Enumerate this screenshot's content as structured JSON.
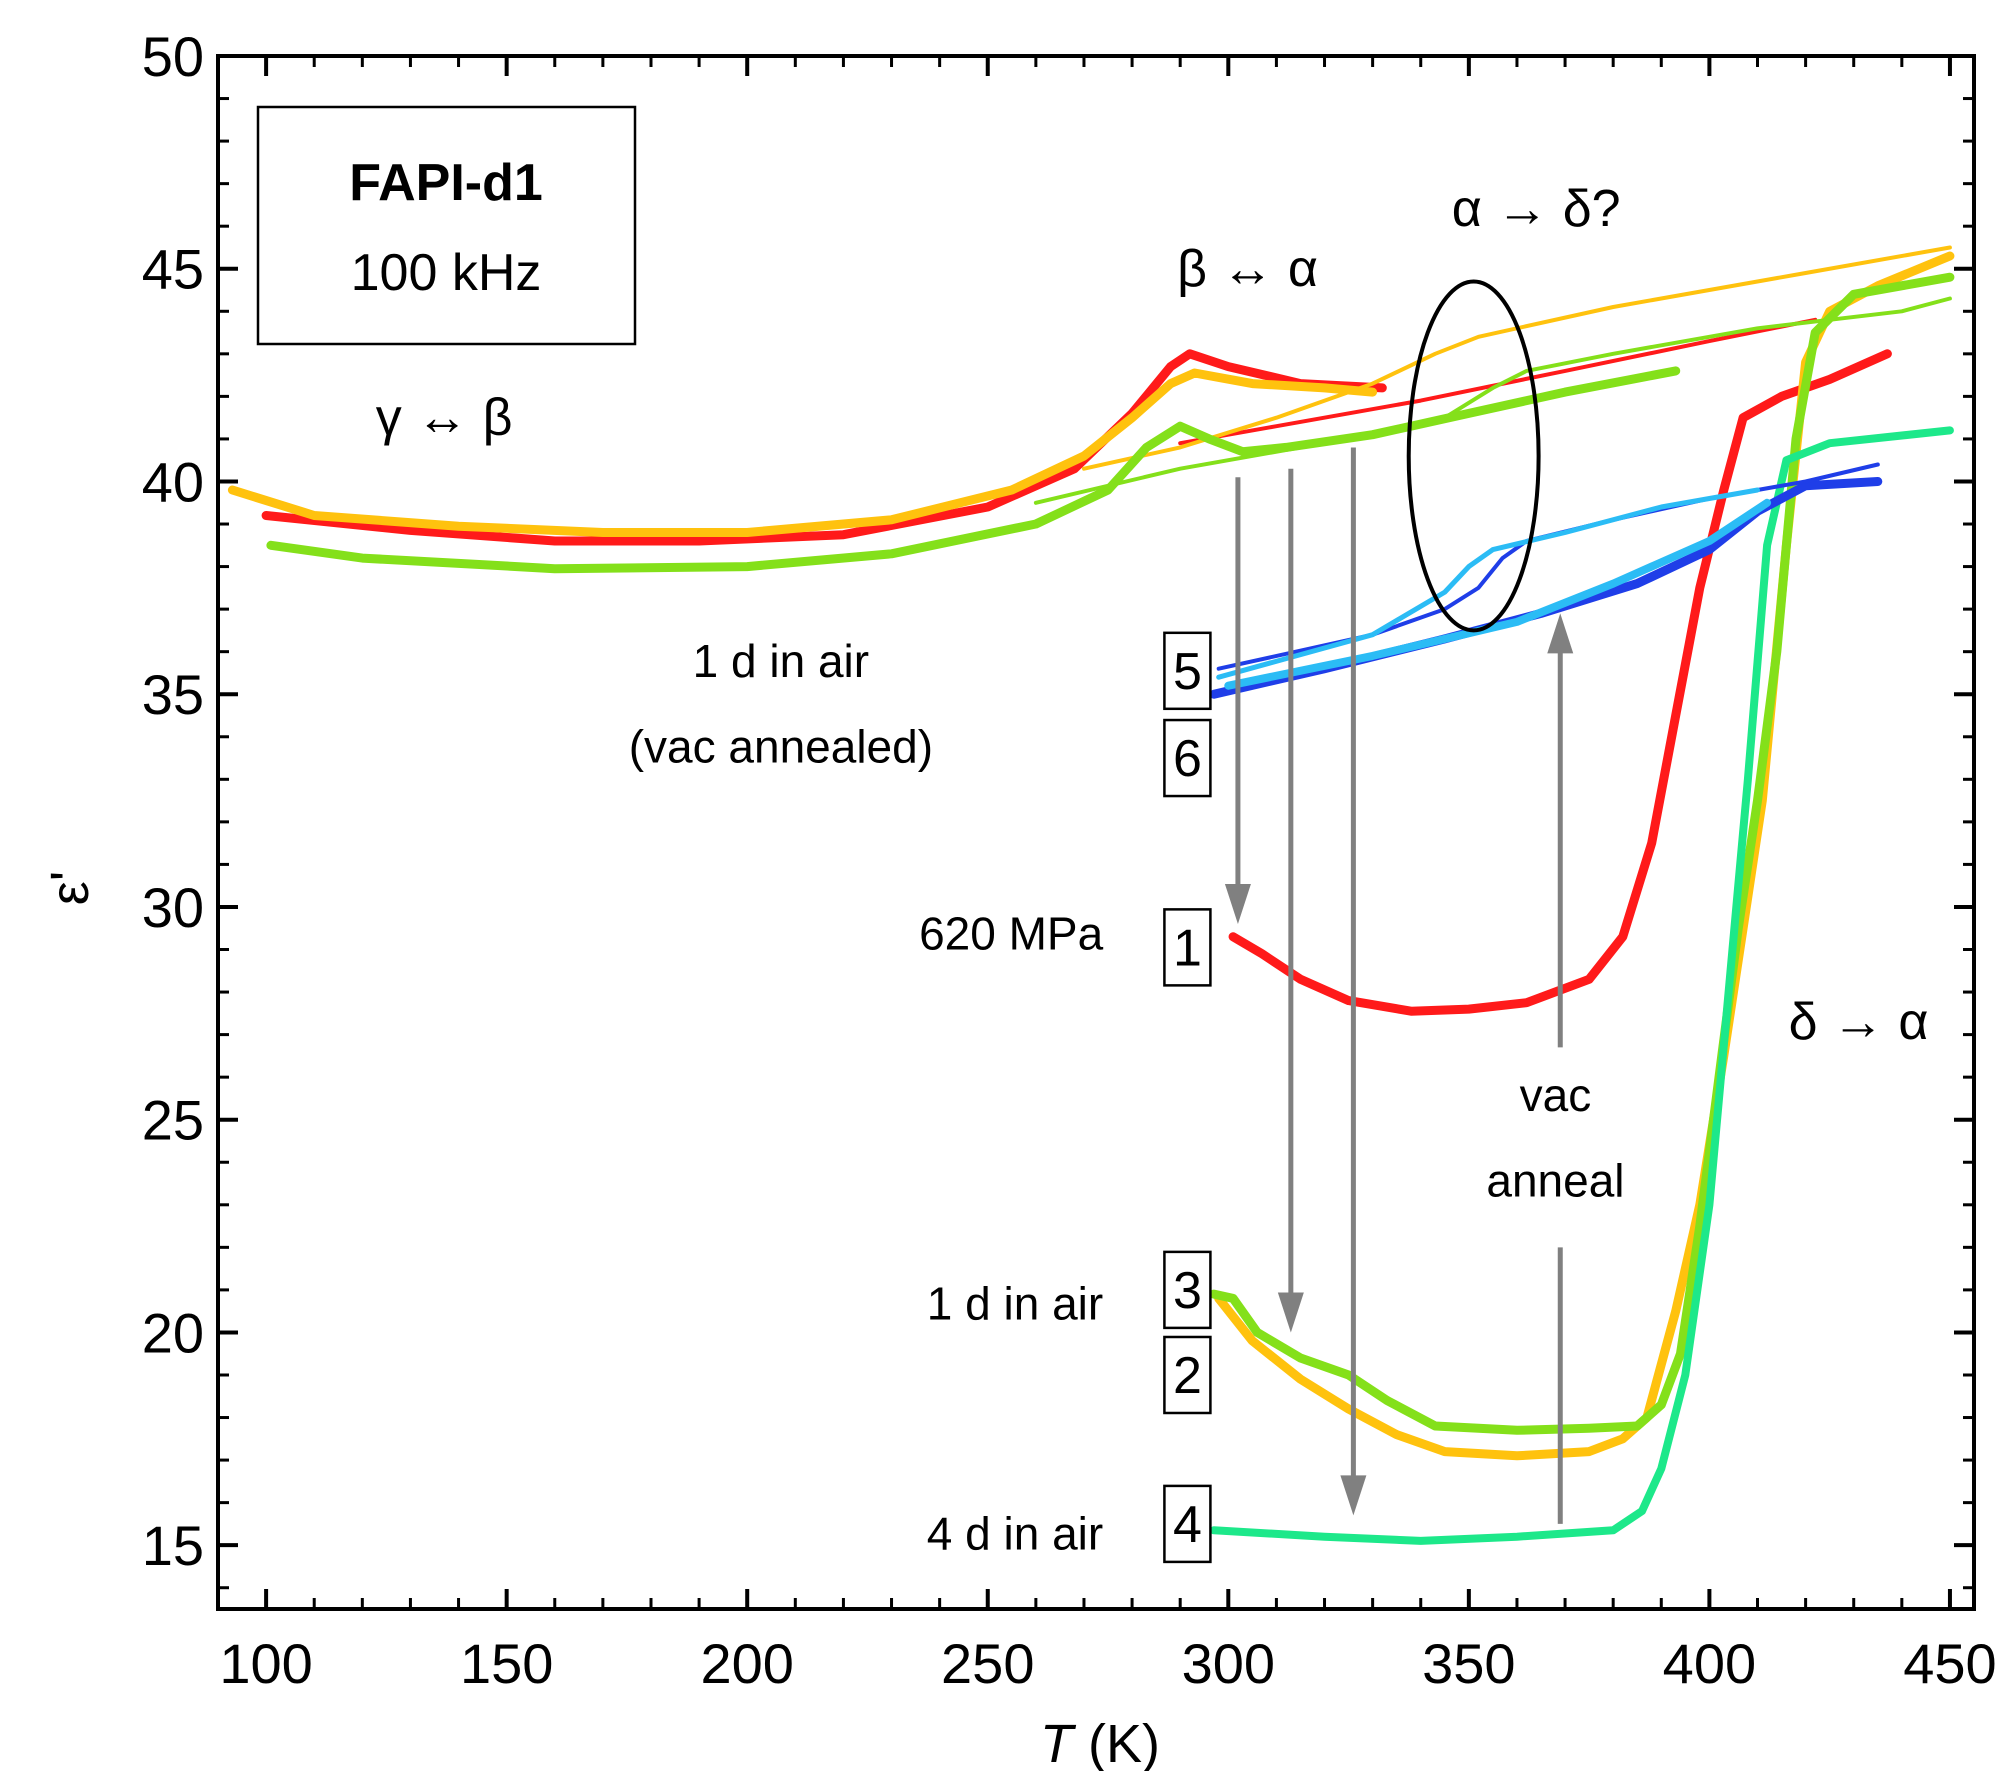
{
  "chart_data": {
    "type": "line",
    "title": "",
    "xlabel_var": "T",
    "xlabel_unit": " (K)",
    "ylabel": "ε'",
    "xlim": [
      90,
      455
    ],
    "ylim": [
      13.5,
      50
    ],
    "xticks": [
      100,
      150,
      200,
      250,
      300,
      350,
      400,
      450
    ],
    "yticks": [
      15,
      20,
      25,
      30,
      35,
      40,
      45,
      50
    ],
    "grid": false,
    "legend_box": {
      "line1": "FAPI-d1",
      "line2": "100 kHz"
    },
    "colors": {
      "red": "#ff1a1a",
      "orange": "#ffc20e",
      "lightgreen": "#84e01a",
      "teal": "#1de88a",
      "blue": "#1f3ee8",
      "skyblue": "#2bbcf5",
      "gray": "#808080"
    },
    "series": [
      {
        "color": "red",
        "width": 9,
        "points": [
          [
            100,
            39.2
          ],
          [
            130,
            38.85
          ],
          [
            160,
            38.6
          ],
          [
            190,
            38.6
          ],
          [
            220,
            38.75
          ],
          [
            250,
            39.4
          ],
          [
            268,
            40.3
          ],
          [
            280,
            41.6
          ],
          [
            288,
            42.7
          ],
          [
            292,
            43.0
          ],
          [
            300,
            42.7
          ],
          [
            315,
            42.3
          ],
          [
            332,
            42.2
          ]
        ]
      },
      {
        "color": "red",
        "width": 4,
        "points": [
          [
            290,
            40.9
          ],
          [
            310,
            41.3
          ],
          [
            340,
            41.9
          ],
          [
            370,
            42.6
          ],
          [
            400,
            43.3
          ],
          [
            422,
            43.8
          ]
        ]
      },
      {
        "color": "red",
        "width": 9,
        "points": [
          [
            301,
            29.3
          ],
          [
            307,
            28.9
          ],
          [
            315,
            28.3
          ],
          [
            325,
            27.8
          ],
          [
            338,
            27.55
          ],
          [
            350,
            27.6
          ],
          [
            362,
            27.75
          ],
          [
            375,
            28.3
          ],
          [
            382,
            29.3
          ],
          [
            388,
            31.5
          ],
          [
            393,
            34.5
          ],
          [
            398,
            37.5
          ],
          [
            403,
            39.8
          ],
          [
            407,
            41.5
          ],
          [
            415,
            42.0
          ],
          [
            425,
            42.4
          ],
          [
            437,
            43.0
          ]
        ]
      },
      {
        "color": "orange",
        "width": 9,
        "points": [
          [
            93,
            39.8
          ],
          [
            110,
            39.2
          ],
          [
            140,
            38.95
          ],
          [
            170,
            38.8
          ],
          [
            200,
            38.8
          ],
          [
            230,
            39.1
          ],
          [
            255,
            39.8
          ],
          [
            270,
            40.6
          ],
          [
            280,
            41.5
          ],
          [
            288,
            42.3
          ],
          [
            293,
            42.55
          ],
          [
            305,
            42.3
          ],
          [
            320,
            42.2
          ],
          [
            330,
            42.1
          ]
        ]
      },
      {
        "color": "orange",
        "width": 4,
        "points": [
          [
            270,
            40.3
          ],
          [
            290,
            40.8
          ],
          [
            310,
            41.5
          ],
          [
            330,
            42.3
          ],
          [
            343,
            43.0
          ],
          [
            352,
            43.4
          ],
          [
            380,
            44.1
          ],
          [
            420,
            44.9
          ],
          [
            450,
            45.5
          ]
        ]
      },
      {
        "color": "orange",
        "width": 9,
        "points": [
          [
            298,
            20.8
          ],
          [
            305,
            19.8
          ],
          [
            315,
            18.9
          ],
          [
            325,
            18.2
          ],
          [
            335,
            17.6
          ],
          [
            345,
            17.2
          ],
          [
            360,
            17.1
          ],
          [
            375,
            17.2
          ],
          [
            382,
            17.5
          ],
          [
            387,
            18.0
          ],
          [
            393,
            20.5
          ],
          [
            398,
            23.0
          ],
          [
            403,
            26.5
          ],
          [
            407,
            29.5
          ],
          [
            411,
            32.5
          ],
          [
            416,
            38.5
          ],
          [
            420,
            42.8
          ],
          [
            425,
            44.0
          ],
          [
            435,
            44.6
          ],
          [
            450,
            45.3
          ]
        ]
      },
      {
        "color": "lightgreen",
        "width": 9,
        "points": [
          [
            101,
            38.5
          ],
          [
            120,
            38.2
          ],
          [
            160,
            37.95
          ],
          [
            200,
            38.0
          ],
          [
            230,
            38.3
          ],
          [
            260,
            39.0
          ],
          [
            275,
            39.8
          ],
          [
            283,
            40.8
          ],
          [
            290,
            41.3
          ],
          [
            296,
            41.0
          ],
          [
            303,
            40.7
          ],
          [
            312,
            40.8
          ],
          [
            330,
            41.1
          ],
          [
            350,
            41.6
          ],
          [
            370,
            42.1
          ],
          [
            393,
            42.6
          ]
        ]
      },
      {
        "color": "lightgreen",
        "width": 4,
        "points": [
          [
            260,
            39.5
          ],
          [
            290,
            40.3
          ],
          [
            320,
            40.9
          ],
          [
            345,
            41.5
          ],
          [
            355,
            42.2
          ],
          [
            362,
            42.6
          ],
          [
            380,
            43.0
          ],
          [
            410,
            43.6
          ],
          [
            440,
            44.0
          ],
          [
            450,
            44.3
          ]
        ]
      },
      {
        "color": "lightgreen",
        "width": 9,
        "points": [
          [
            297,
            20.9
          ],
          [
            301,
            20.8
          ],
          [
            306,
            20.0
          ],
          [
            315,
            19.4
          ],
          [
            325,
            19.0
          ],
          [
            333,
            18.4
          ],
          [
            343,
            17.8
          ],
          [
            360,
            17.7
          ],
          [
            375,
            17.75
          ],
          [
            385,
            17.8
          ],
          [
            390,
            18.3
          ],
          [
            394,
            19.5
          ],
          [
            398,
            22.5
          ],
          [
            402,
            26.0
          ],
          [
            406,
            29.5
          ],
          [
            410,
            32.5
          ],
          [
            414,
            36.0
          ],
          [
            418,
            41.0
          ],
          [
            422,
            43.5
          ],
          [
            430,
            44.4
          ],
          [
            450,
            44.8
          ]
        ]
      },
      {
        "color": "teal",
        "width": 8,
        "points": [
          [
            297,
            15.35
          ],
          [
            320,
            15.2
          ],
          [
            340,
            15.1
          ],
          [
            360,
            15.2
          ],
          [
            380,
            15.35
          ],
          [
            386,
            15.8
          ],
          [
            390,
            16.8
          ],
          [
            395,
            19.0
          ],
          [
            400,
            23.0
          ],
          [
            404,
            28.0
          ],
          [
            408,
            33.0
          ],
          [
            412,
            38.5
          ],
          [
            416,
            40.5
          ],
          [
            425,
            40.9
          ],
          [
            450,
            41.2
          ]
        ]
      },
      {
        "color": "blue",
        "width": 9,
        "points": [
          [
            297,
            35.0
          ],
          [
            320,
            35.6
          ],
          [
            345,
            36.3
          ],
          [
            365,
            36.9
          ],
          [
            385,
            37.6
          ],
          [
            400,
            38.4
          ],
          [
            410,
            39.3
          ],
          [
            420,
            39.9
          ],
          [
            435,
            40.0
          ]
        ]
      },
      {
        "color": "blue",
        "width": 4,
        "points": [
          [
            298,
            35.6
          ],
          [
            330,
            36.4
          ],
          [
            345,
            37.0
          ],
          [
            352,
            37.5
          ],
          [
            357,
            38.2
          ],
          [
            362,
            38.6
          ],
          [
            380,
            39.1
          ],
          [
            400,
            39.6
          ],
          [
            420,
            40.0
          ],
          [
            435,
            40.4
          ]
        ]
      },
      {
        "color": "skyblue",
        "width": 5,
        "points": [
          [
            298,
            35.4
          ],
          [
            330,
            36.4
          ],
          [
            345,
            37.4
          ],
          [
            350,
            38.0
          ],
          [
            355,
            38.4
          ],
          [
            370,
            38.8
          ],
          [
            390,
            39.4
          ],
          [
            410,
            39.8
          ]
        ]
      },
      {
        "color": "skyblue",
        "width": 8,
        "points": [
          [
            300,
            35.2
          ],
          [
            330,
            35.9
          ],
          [
            360,
            36.7
          ],
          [
            380,
            37.6
          ],
          [
            400,
            38.6
          ],
          [
            412,
            39.5
          ]
        ]
      }
    ],
    "arrows": [
      {
        "x": 302,
        "y_from": 40.1,
        "y_to": 29.6
      },
      {
        "x": 313,
        "y_from": 40.3,
        "y_to": 20.0
      },
      {
        "x": 326,
        "y_from": 40.8,
        "y_to": 15.7
      },
      {
        "x": 369,
        "y_from": 15.5,
        "y_to": 22.0,
        "head": false
      },
      {
        "x": 369,
        "y_from": 26.7,
        "y_to": 36.9
      }
    ],
    "ellipse": {
      "cx": 351,
      "cy": 40.6,
      "rx": 13.5,
      "ry": 4.1
    },
    "annotations": [
      {
        "text": "γ ↔ β",
        "x": 137,
        "y": 41.1,
        "size": 52,
        "anchor": "middle"
      },
      {
        "text": "β ↔ α",
        "x": 304,
        "y": 44.6,
        "size": 52,
        "anchor": "middle"
      },
      {
        "text": "α → δ?",
        "x": 364,
        "y": 46.0,
        "size": 52,
        "anchor": "middle"
      },
      {
        "text": "δ → α",
        "x": 431,
        "y": 26.9,
        "size": 52,
        "anchor": "middle"
      },
      {
        "text": "1 d in air",
        "x": 207,
        "y": 35.4,
        "size": 46,
        "anchor": "middle"
      },
      {
        "text": "(vac annealed)",
        "x": 207,
        "y": 33.4,
        "size": 46,
        "anchor": "middle"
      },
      {
        "text": "620 MPa",
        "x": 274,
        "y": 29.0,
        "size": 46,
        "anchor": "end"
      },
      {
        "text": "1 d in air",
        "x": 274,
        "y": 20.3,
        "size": 46,
        "anchor": "end"
      },
      {
        "text": "4 d in air",
        "x": 274,
        "y": 14.9,
        "size": 46,
        "anchor": "end"
      },
      {
        "text": "vac",
        "x": 368,
        "y": 25.2,
        "size": 46,
        "anchor": "middle"
      },
      {
        "text": "anneal",
        "x": 368,
        "y": 23.2,
        "size": 46,
        "anchor": "middle"
      }
    ],
    "boxed_labels": [
      {
        "text": "5",
        "x": 291.5,
        "y": 35.55
      },
      {
        "text": "6",
        "x": 291.5,
        "y": 33.5
      },
      {
        "text": "1",
        "x": 291.5,
        "y": 29.05
      },
      {
        "text": "3",
        "x": 291.5,
        "y": 21.0
      },
      {
        "text": "2",
        "x": 291.5,
        "y": 19.0
      },
      {
        "text": "4",
        "x": 291.5,
        "y": 15.5
      }
    ]
  }
}
